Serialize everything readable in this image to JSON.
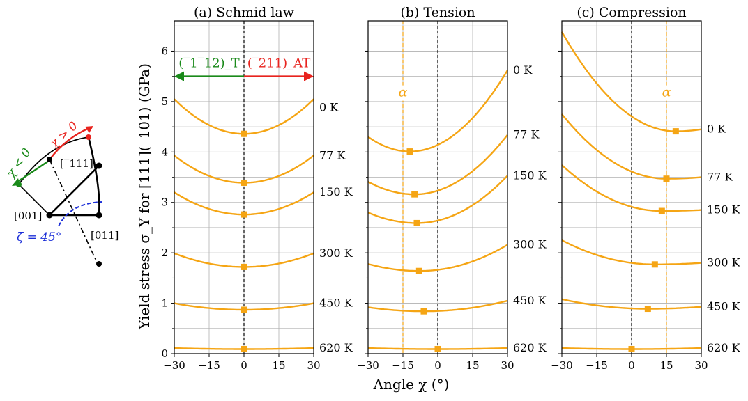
{
  "figure": {
    "ylabel": "Yield stress σ_Y for [111](‾101) (GPa)",
    "xlabel": "Angle χ (°)"
  },
  "stereo": {
    "labels": {
      "chi_neg": "χ < 0",
      "chi_pos": "χ > 0",
      "dir_111": "[‾111]",
      "dir_001": "[001]",
      "dir_011": "[011]",
      "zeta": "ζ = 45°"
    },
    "colors": {
      "neg": "#1a8a1a",
      "pos": "#e8231e",
      "zeta": "#1c2fd8"
    }
  },
  "chart_data": [
    {
      "type": "line",
      "title": "(a) Schmid law",
      "xlim": [
        -30,
        30
      ],
      "ylim": [
        0,
        6.6
      ],
      "xticks": [
        "−30",
        "−15",
        "0",
        "15",
        "30"
      ],
      "yticks": [
        "0",
        "1",
        "2",
        "3",
        "4",
        "5",
        "6"
      ],
      "grid": true,
      "reference_line_x": 0,
      "alpha_line_x": null,
      "alpha_label": "",
      "arrows": {
        "left_label": "(‾1‾12)_T",
        "right_label": "(‾211)_AT",
        "y": 5.5,
        "left_color": "#1a8a1a",
        "right_color": "#e8231e"
      },
      "series": [
        {
          "name": "0 K",
          "y_at_min": 4.36,
          "x_min": 0,
          "y_at_minus30": 5.05,
          "y_at_plus30": 5.05,
          "label_y": 4.88
        },
        {
          "name": "77 K",
          "y_at_min": 3.39,
          "x_min": 0,
          "y_at_minus30": 3.93,
          "y_at_plus30": 3.93,
          "label_y": 3.93
        },
        {
          "name": "150 K",
          "y_at_min": 2.76,
          "x_min": 0,
          "y_at_minus30": 3.2,
          "y_at_plus30": 3.2,
          "label_y": 3.2
        },
        {
          "name": "300 K",
          "y_at_min": 1.72,
          "x_min": 0,
          "y_at_minus30": 1.99,
          "y_at_plus30": 1.99,
          "label_y": 1.99
        },
        {
          "name": "450 K",
          "y_at_min": 0.87,
          "x_min": 0,
          "y_at_minus30": 1.0,
          "y_at_plus30": 1.0,
          "label_y": 1.0
        },
        {
          "name": "620 K",
          "y_at_min": 0.09,
          "x_min": 0,
          "y_at_minus30": 0.11,
          "y_at_plus30": 0.11,
          "label_y": 0.11
        }
      ]
    },
    {
      "type": "line",
      "title": "(b) Tension",
      "xlim": [
        -30,
        30
      ],
      "ylim": [
        0,
        6.6
      ],
      "xticks": [
        "−30",
        "−15",
        "0",
        "15",
        "30"
      ],
      "yticks": [],
      "grid": true,
      "reference_line_x": 0,
      "alpha_line_x": -15,
      "alpha_label": "α",
      "series": [
        {
          "name": "0 K",
          "y_at_min": 4.01,
          "x_min": -12,
          "y_at_minus30": 4.3,
          "y_at_plus30": 5.62,
          "label_y": 5.62
        },
        {
          "name": "77 K",
          "y_at_min": 3.16,
          "x_min": -10,
          "y_at_minus30": 3.41,
          "y_at_plus30": 4.34,
          "label_y": 4.34
        },
        {
          "name": "150 K",
          "y_at_min": 2.59,
          "x_min": -9,
          "y_at_minus30": 2.8,
          "y_at_plus30": 3.53,
          "label_y": 3.53
        },
        {
          "name": "300 K",
          "y_at_min": 1.64,
          "x_min": -8,
          "y_at_minus30": 1.78,
          "y_at_plus30": 2.16,
          "label_y": 2.16
        },
        {
          "name": "450 K",
          "y_at_min": 0.84,
          "x_min": -6,
          "y_at_minus30": 0.92,
          "y_at_plus30": 1.05,
          "label_y": 1.05
        },
        {
          "name": "620 K",
          "y_at_min": 0.09,
          "x_min": 0,
          "y_at_minus30": 0.11,
          "y_at_plus30": 0.11,
          "label_y": 0.11
        }
      ]
    },
    {
      "type": "line",
      "title": "(c) Compression",
      "xlim": [
        -30,
        30
      ],
      "ylim": [
        0,
        6.6
      ],
      "xticks": [
        "−30",
        "−15",
        "0",
        "15",
        "30"
      ],
      "yticks": [],
      "grid": true,
      "reference_line_x": 0,
      "alpha_line_x": 15,
      "alpha_label": "α",
      "series": [
        {
          "name": "0 K",
          "y_at_min": 4.41,
          "x_min": 19,
          "y_at_minus30": 6.38,
          "y_at_plus30": 4.45,
          "label_y": 4.45
        },
        {
          "name": "77 K",
          "y_at_min": 3.47,
          "x_min": 15,
          "y_at_minus30": 4.75,
          "y_at_plus30": 3.5,
          "label_y": 3.5
        },
        {
          "name": "150 K",
          "y_at_min": 2.83,
          "x_min": 13,
          "y_at_minus30": 3.74,
          "y_at_plus30": 2.85,
          "label_y": 2.85
        },
        {
          "name": "300 K",
          "y_at_min": 1.77,
          "x_min": 10,
          "y_at_minus30": 2.25,
          "y_at_plus30": 1.8,
          "label_y": 1.8
        },
        {
          "name": "450 K",
          "y_at_min": 0.89,
          "x_min": 7,
          "y_at_minus30": 1.08,
          "y_at_plus30": 0.93,
          "label_y": 0.93
        },
        {
          "name": "620 K",
          "y_at_min": 0.09,
          "x_min": 0,
          "y_at_minus30": 0.11,
          "y_at_plus30": 0.11,
          "label_y": 0.11
        }
      ]
    }
  ]
}
